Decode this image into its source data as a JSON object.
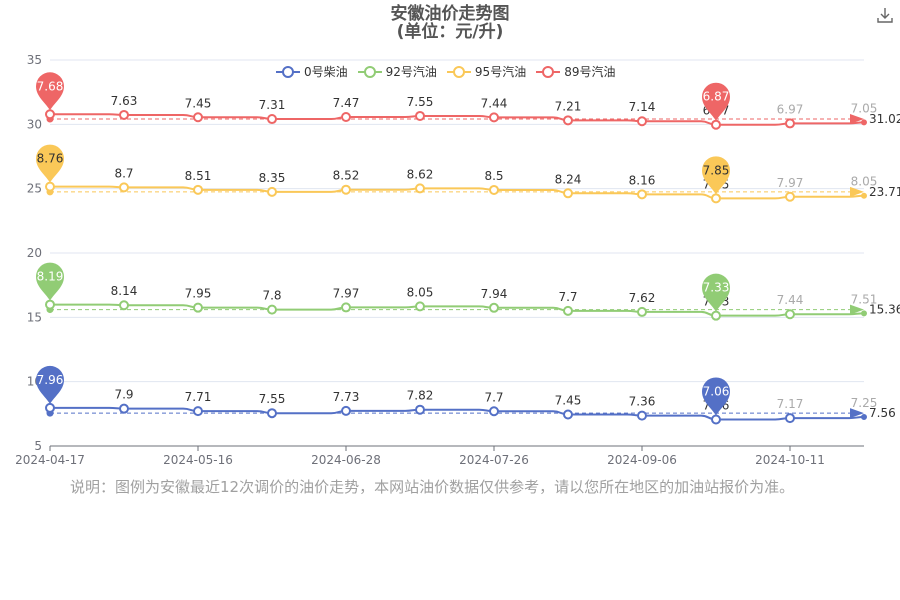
{
  "title": "安徽油价走势图",
  "subtitle": "(单位：元/升)",
  "note": "说明：图例为安徽最近12次调价的油价走势，本网站油价数据仅供参考，请以您所在地区的加油站报价为准。",
  "colors": {
    "diesel0": "#5470c6",
    "gas92": "#91cc75",
    "gas95": "#fac858",
    "gas89": "#ee6666"
  },
  "chart_data": {
    "type": "line",
    "x_tick_labels": [
      "2024-04-17",
      "2024-05-16",
      "2024-06-28",
      "2024-07-26",
      "2024-09-06",
      "2024-10-11"
    ],
    "y_ticks": [
      5,
      10,
      15,
      20,
      25,
      30,
      35
    ],
    "ylim": [
      5,
      35
    ],
    "legend_position": "top",
    "series": [
      {
        "name": "0号柴油",
        "color_key": "diesel0",
        "values": [
          7.96,
          7.9,
          7.71,
          7.55,
          7.73,
          7.82,
          7.7,
          7.45,
          7.36,
          7.06,
          7.17,
          7.25
        ],
        "max": 7.96,
        "min": 7.06,
        "avg": 7.56
      },
      {
        "name": "92号汽油",
        "color_key": "gas92",
        "values": [
          8.19,
          8.14,
          7.95,
          7.8,
          7.97,
          8.05,
          7.94,
          7.7,
          7.62,
          7.33,
          7.44,
          7.51
        ],
        "max": 8.19,
        "min": 7.33,
        "avg": 15.36
      },
      {
        "name": "95号汽油",
        "color_key": "gas95",
        "values": [
          8.76,
          8.7,
          8.51,
          8.35,
          8.52,
          8.62,
          8.5,
          8.24,
          8.16,
          7.85,
          7.97,
          8.05
        ],
        "max": 8.76,
        "min": 7.85,
        "avg": 23.71
      },
      {
        "name": "89号汽油",
        "color_key": "gas89",
        "values": [
          7.68,
          7.63,
          7.45,
          7.31,
          7.47,
          7.55,
          7.44,
          7.21,
          7.14,
          6.87,
          6.97,
          7.05
        ],
        "max": 7.68,
        "min": 6.87,
        "avg": 31.02
      }
    ]
  }
}
